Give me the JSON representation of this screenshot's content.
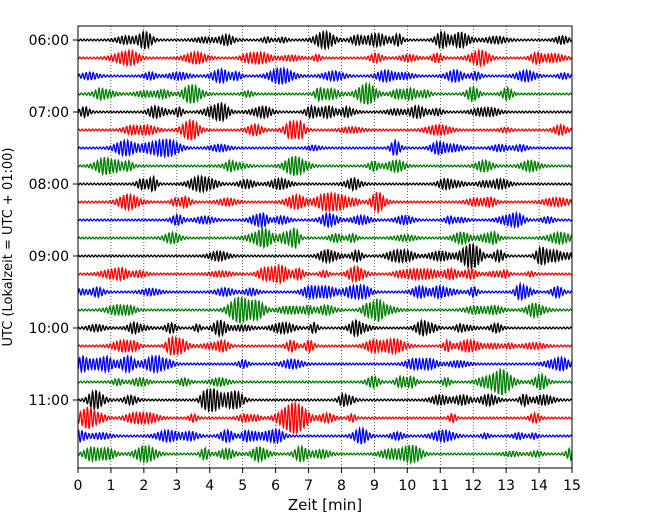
{
  "chart_data": {
    "type": "line",
    "title": "",
    "xlabel": "Zeit  [min]",
    "ylabel": "UTC (Lokalzeit = UTC + 01:00)",
    "xlim": [
      0,
      15
    ],
    "x_ticks": [
      0,
      1,
      2,
      3,
      4,
      5,
      6,
      7,
      8,
      9,
      10,
      11,
      12,
      13,
      14,
      15
    ],
    "x_tick_labels": [
      "0",
      "1",
      "2",
      "3",
      "4",
      "5",
      "6",
      "7",
      "8",
      "9",
      "10",
      "11",
      "12",
      "13",
      "14",
      "15"
    ],
    "y_tick_labels": [
      "06:00",
      "07:00",
      "08:00",
      "09:00",
      "10:00",
      "11:00"
    ],
    "trace_count": 24,
    "trace_minutes": 15,
    "grid": "vertical dotted at each minute",
    "color_cycle": [
      "#000000",
      "#ff0000",
      "#0000ff",
      "#008000"
    ]
  }
}
